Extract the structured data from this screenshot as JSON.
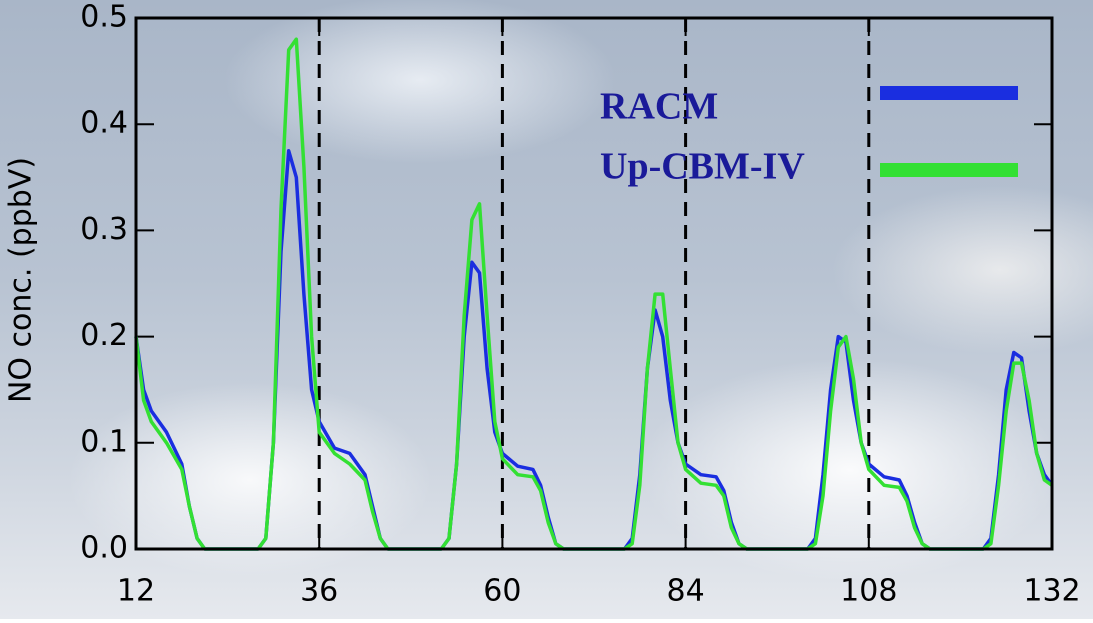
{
  "chart_data": {
    "type": "line",
    "ylabel": "NO conc. (ppbV)",
    "x": [
      12,
      13,
      14,
      16,
      18,
      19,
      20,
      21,
      28,
      29,
      30,
      31,
      32,
      33,
      34,
      35,
      36,
      38,
      40,
      42,
      43,
      44,
      45,
      52,
      53,
      54,
      55,
      56,
      57,
      58,
      59,
      60,
      62,
      64,
      65,
      66,
      67,
      68,
      76,
      77,
      78,
      79,
      80,
      81,
      82,
      83,
      84,
      86,
      88,
      89,
      90,
      91,
      92,
      100,
      101,
      102,
      103,
      104,
      105,
      106,
      107,
      108,
      110,
      112,
      113,
      114,
      115,
      116,
      123,
      124,
      125,
      126,
      127,
      128,
      129,
      130,
      131,
      132
    ],
    "series": [
      {
        "name": "RACM",
        "color": "#1a2ee0",
        "values": [
          0.2,
          0.15,
          0.13,
          0.11,
          0.08,
          0.04,
          0.01,
          0,
          0,
          0.01,
          0.1,
          0.28,
          0.375,
          0.35,
          0.24,
          0.15,
          0.12,
          0.095,
          0.09,
          0.07,
          0.04,
          0.01,
          0,
          0,
          0.01,
          0.08,
          0.2,
          0.27,
          0.26,
          0.17,
          0.11,
          0.09,
          0.078,
          0.075,
          0.06,
          0.03,
          0.005,
          0,
          0,
          0.01,
          0.07,
          0.17,
          0.225,
          0.2,
          0.14,
          0.1,
          0.08,
          0.07,
          0.068,
          0.055,
          0.025,
          0.005,
          0,
          0,
          0.01,
          0.07,
          0.15,
          0.2,
          0.195,
          0.14,
          0.1,
          0.08,
          0.068,
          0.065,
          0.05,
          0.025,
          0.005,
          0,
          0,
          0.01,
          0.07,
          0.15,
          0.185,
          0.18,
          0.13,
          0.09,
          0.07,
          0.06
        ]
      },
      {
        "name": "Up-CBM-IV",
        "color": "#33e033",
        "values": [
          0.2,
          0.14,
          0.12,
          0.1,
          0.075,
          0.04,
          0.01,
          0,
          0,
          0.01,
          0.1,
          0.32,
          0.47,
          0.48,
          0.36,
          0.2,
          0.11,
          0.09,
          0.08,
          0.065,
          0.035,
          0.01,
          0,
          0,
          0.01,
          0.08,
          0.22,
          0.31,
          0.325,
          0.22,
          0.12,
          0.085,
          0.07,
          0.068,
          0.055,
          0.025,
          0.005,
          0,
          0,
          0.005,
          0.06,
          0.17,
          0.24,
          0.24,
          0.17,
          0.1,
          0.075,
          0.062,
          0.06,
          0.05,
          0.02,
          0.005,
          0,
          0,
          0.005,
          0.05,
          0.13,
          0.19,
          0.2,
          0.16,
          0.1,
          0.075,
          0.06,
          0.058,
          0.045,
          0.02,
          0.005,
          0,
          0,
          0.005,
          0.06,
          0.13,
          0.175,
          0.175,
          0.14,
          0.09,
          0.065,
          0.06
        ]
      }
    ],
    "xlim": [
      12,
      132
    ],
    "xticks": [
      12,
      36,
      60,
      84,
      108,
      132
    ],
    "ylim": [
      0,
      0.5
    ],
    "yticks": [
      {
        "value": 0,
        "label": "0.0"
      },
      0.1,
      0.2,
      0.3,
      0.4,
      0.5
    ],
    "vlines": [
      36,
      60,
      84,
      108
    ],
    "legend_text_color": "#1a1a99"
  }
}
